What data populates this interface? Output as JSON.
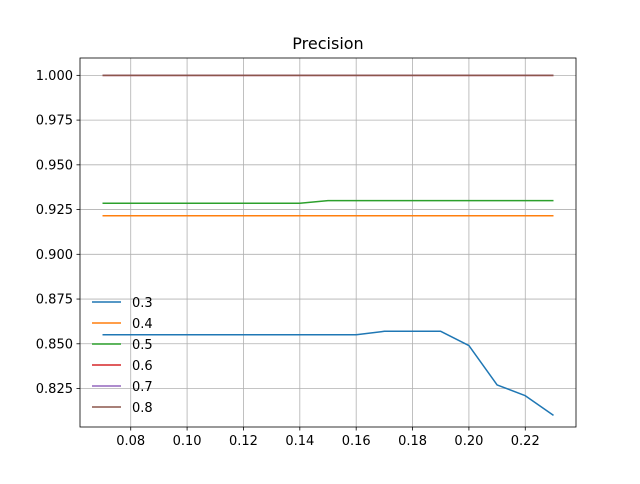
{
  "chart_data": {
    "type": "line",
    "title": "Precision",
    "xlabel": "",
    "ylabel": "",
    "xlim": [
      0.062,
      0.238
    ],
    "ylim": [
      0.8035,
      1.0097
    ],
    "grid": true,
    "legend_position": "lower-left",
    "x_ticks": [
      0.08,
      0.1,
      0.12,
      0.14,
      0.16,
      0.18,
      0.2,
      0.22
    ],
    "x_tick_labels": [
      "0.08",
      "0.10",
      "0.12",
      "0.14",
      "0.16",
      "0.18",
      "0.20",
      "0.22"
    ],
    "y_ticks": [
      0.825,
      0.85,
      0.875,
      0.9,
      0.925,
      0.95,
      0.975,
      1.0
    ],
    "y_tick_labels": [
      "0.825",
      "0.850",
      "0.875",
      "0.900",
      "0.925",
      "0.950",
      "0.975",
      "1.000"
    ],
    "x": [
      0.07,
      0.08,
      0.09,
      0.1,
      0.11,
      0.12,
      0.13,
      0.14,
      0.15,
      0.16,
      0.17,
      0.18,
      0.19,
      0.2,
      0.21,
      0.22,
      0.23
    ],
    "series": [
      {
        "name": "0.3",
        "color": "#1f77b4",
        "values": [
          0.855,
          0.855,
          0.855,
          0.855,
          0.855,
          0.855,
          0.855,
          0.855,
          0.855,
          0.855,
          0.857,
          0.857,
          0.857,
          0.849,
          0.827,
          0.821,
          0.81
        ]
      },
      {
        "name": "0.4",
        "color": "#ff7f0e",
        "values": [
          0.9215,
          0.9215,
          0.9215,
          0.9215,
          0.9215,
          0.9215,
          0.9215,
          0.9215,
          0.9215,
          0.9215,
          0.9215,
          0.9215,
          0.9215,
          0.9215,
          0.9215,
          0.9215,
          0.9215
        ]
      },
      {
        "name": "0.5",
        "color": "#2ca02c",
        "values": [
          0.9285,
          0.9285,
          0.9285,
          0.9285,
          0.9285,
          0.9285,
          0.9285,
          0.9285,
          0.93,
          0.93,
          0.93,
          0.93,
          0.93,
          0.93,
          0.93,
          0.93,
          0.93
        ]
      },
      {
        "name": "0.6",
        "color": "#d62728",
        "values": [
          1.0,
          1.0,
          1.0,
          1.0,
          1.0,
          1.0,
          1.0,
          1.0,
          1.0,
          1.0,
          1.0,
          1.0,
          1.0,
          1.0,
          1.0,
          1.0,
          1.0
        ]
      },
      {
        "name": "0.7",
        "color": "#9467bd",
        "values": [
          1.0,
          1.0,
          1.0,
          1.0,
          1.0,
          1.0,
          1.0,
          1.0,
          1.0,
          1.0,
          1.0,
          1.0,
          1.0,
          1.0,
          1.0,
          1.0,
          1.0
        ]
      },
      {
        "name": "0.8",
        "color": "#8c564b",
        "values": [
          1.0,
          1.0,
          1.0,
          1.0,
          1.0,
          1.0,
          1.0,
          1.0,
          1.0,
          1.0,
          1.0,
          1.0,
          1.0,
          1.0,
          1.0,
          1.0,
          1.0
        ]
      }
    ]
  }
}
